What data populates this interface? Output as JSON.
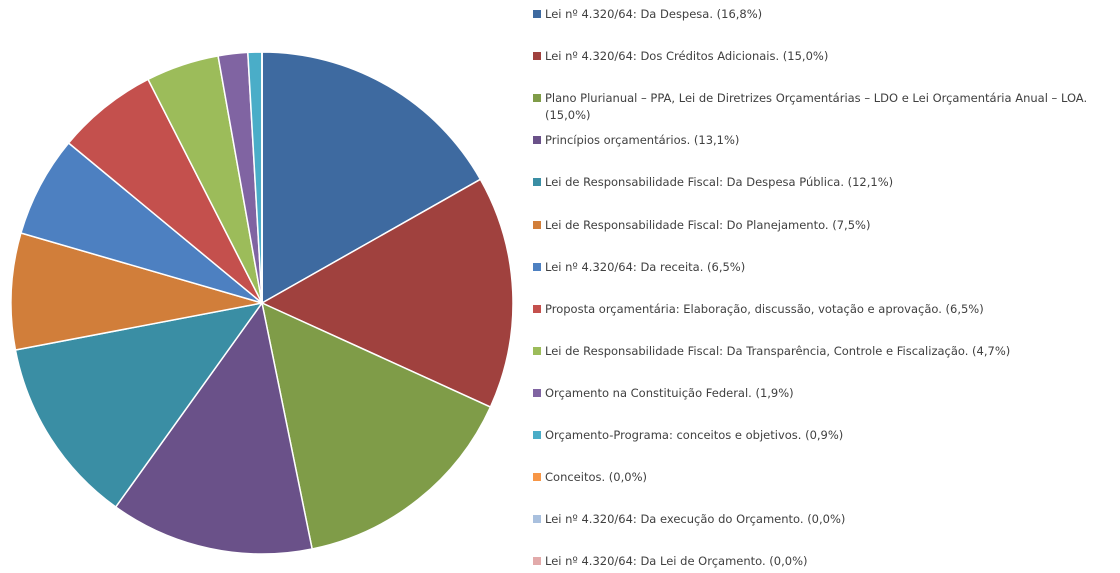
{
  "chart_data": {
    "type": "pie",
    "categories": [
      "Lei nº 4.320/64: Da Despesa. (16,8%)",
      "Lei nº 4.320/64: Dos Créditos Adicionais. (15,0%)",
      "Plano Plurianual – PPA, Lei de Diretrizes Orçamentárias – LDO e Lei Orçamentária Anual – LOA.  (15,0%)",
      "Princípios orçamentários. (13,1%)",
      "Lei de Responsabilidade Fiscal: Da Despesa Pública. (12,1%)",
      "Lei de Responsabilidade Fiscal: Do Planejamento. (7,5%)",
      "Lei nº 4.320/64: Da receita. (6,5%)",
      "Proposta orçamentária: Elaboração, discussão, votação e aprovação. (6,5%)",
      "Lei de Responsabilidade Fiscal: Da Transparência, Controle e Fiscalização. (4,7%)",
      "Orçamento na Constituição Federal. (1,9%)",
      "Orçamento-Programa: conceitos e objetivos. (0,9%)",
      "Conceitos. (0,0%)",
      "Lei nº 4.320/64: Da execução do Orçamento. (0,0%)",
      "Lei nº 4.320/64: Da Lei de Orçamento. (0,0%)"
    ],
    "values": [
      16.8,
      15.0,
      15.0,
      13.1,
      12.1,
      7.5,
      6.5,
      6.5,
      4.7,
      1.9,
      0.9,
      0.0,
      0.0,
      0.0
    ],
    "colors": [
      "#3e6aa0",
      "#a0413e",
      "#7f9c48",
      "#6a5189",
      "#3a8ea4",
      "#d17e3a",
      "#4d80c1",
      "#c4504d",
      "#9cbc5a",
      "#8064a2",
      "#4aadc8",
      "#f79646",
      "#a9c0de",
      "#e2aaaa"
    ]
  }
}
